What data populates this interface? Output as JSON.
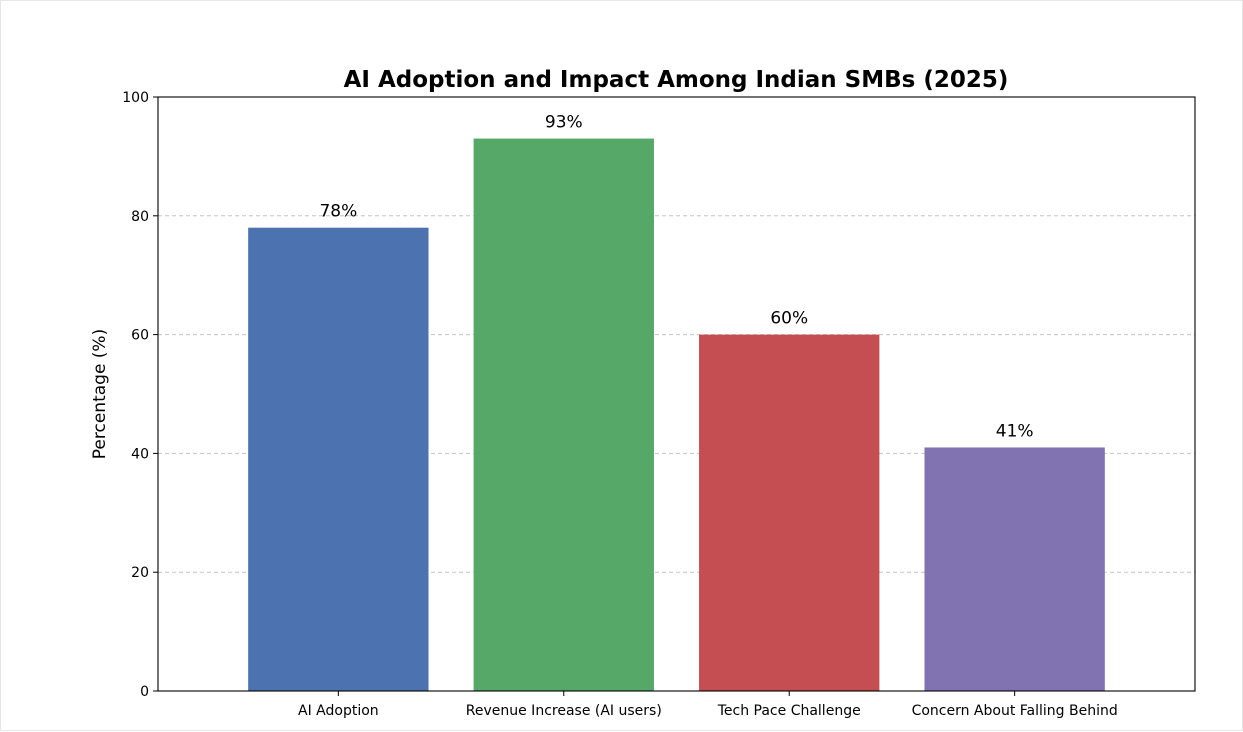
{
  "chart_data": {
    "type": "bar",
    "title": "AI Adoption and Impact Among Indian SMBs (2025)",
    "xlabel": "",
    "ylabel": "Percentage (%)",
    "ylim": [
      0,
      100
    ],
    "yticks": [
      0,
      20,
      40,
      60,
      80,
      100
    ],
    "grid": "y-dashed",
    "categories": [
      "AI Adoption",
      "Revenue Increase (AI users)",
      "Tech Pace Challenge",
      "Concern About Falling Behind"
    ],
    "values": [
      78,
      93,
      60,
      41
    ],
    "data_labels": [
      "78%",
      "93%",
      "60%",
      "41%"
    ],
    "colors": [
      "#4c72b0",
      "#55a868",
      "#c44e52",
      "#8172b2"
    ]
  }
}
